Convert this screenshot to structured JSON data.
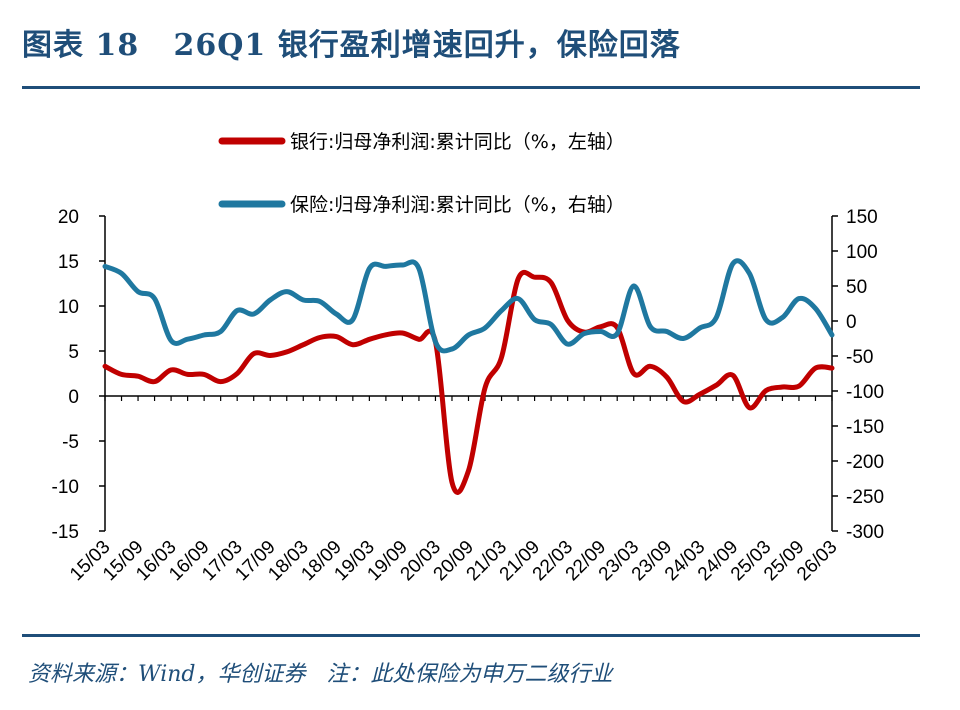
{
  "header": {
    "title": "图表 18   26Q1 银行盈利增速回升，保险回落"
  },
  "footer": {
    "source": "资料来源：Wind，华创证券   注：此处保险为申万二级行业"
  },
  "colors": {
    "bank": "#c00000",
    "insurance": "#1f78a0",
    "brand": "#1f4e79"
  },
  "chart_data": {
    "type": "line",
    "legend": [
      {
        "label": "银行:归母净利润:累计同比（%，左轴）",
        "series": "bank"
      },
      {
        "label": "保险:归母净利润:累计同比（%，右轴）",
        "series": "insurance"
      }
    ],
    "x_ticks": [
      "15/03",
      "15/09",
      "16/03",
      "16/09",
      "17/03",
      "17/09",
      "18/03",
      "18/09",
      "19/03",
      "19/09",
      "20/03",
      "20/09",
      "21/03",
      "21/09",
      "22/03",
      "22/09",
      "23/03",
      "23/09",
      "24/03",
      "24/09",
      "25/03",
      "25/09",
      "26/03"
    ],
    "x_quarters": [
      "15/03",
      "15/06",
      "15/09",
      "15/12",
      "16/03",
      "16/06",
      "16/09",
      "16/12",
      "17/03",
      "17/06",
      "17/09",
      "17/12",
      "18/03",
      "18/06",
      "18/09",
      "18/12",
      "19/03",
      "19/06",
      "19/09",
      "19/12",
      "20/03",
      "20/06",
      "20/09",
      "20/12",
      "21/03",
      "21/06",
      "21/09",
      "21/12",
      "22/03",
      "22/06",
      "22/09",
      "22/12",
      "23/03",
      "23/06",
      "23/09",
      "23/12",
      "24/03",
      "24/06",
      "24/09",
      "24/12",
      "25/03",
      "25/06",
      "25/09",
      "25/12",
      "26/03"
    ],
    "left_axis": {
      "min": -15,
      "max": 20,
      "step": 5,
      "ticks": [
        "20",
        "15",
        "10",
        "5",
        "0",
        "-5",
        "-10",
        "-15"
      ]
    },
    "right_axis": {
      "min": -300,
      "max": 150,
      "step": 50,
      "ticks": [
        "150",
        "100",
        "50",
        "0",
        "-50",
        "-100",
        "-150",
        "-200",
        "-250",
        "-300"
      ]
    },
    "series": [
      {
        "name": "银行:归母净利润:累计同比（%，左轴）",
        "key": "bank",
        "axis": "left",
        "values": [
          3.3,
          2.4,
          2.2,
          1.6,
          2.9,
          2.4,
          2.4,
          1.6,
          2.5,
          4.7,
          4.5,
          4.9,
          5.7,
          6.5,
          6.6,
          5.7,
          6.3,
          6.8,
          7.0,
          6.3,
          6.0,
          -9.6,
          -8.3,
          0.9,
          4.3,
          13.0,
          13.2,
          12.6,
          8.4,
          7.1,
          7.7,
          7.6,
          2.5,
          3.3,
          2.1,
          -0.6,
          0.2,
          1.2,
          2.3,
          -1.3,
          0.6,
          1.0,
          1.1,
          3.1,
          3.1
        ]
      },
      {
        "name": "保险:归母净利润:累计同比（%，右轴）",
        "key": "insurance",
        "axis": "right",
        "values": [
          78,
          68,
          42,
          32,
          -28,
          -26,
          -20,
          -15,
          15,
          10,
          30,
          42,
          30,
          28,
          10,
          2,
          75,
          78,
          80,
          75,
          -30,
          -40,
          -20,
          -10,
          15,
          32,
          2,
          -5,
          -33,
          -18,
          -15,
          -18,
          50,
          -8,
          -15,
          -25,
          -10,
          5,
          82,
          68,
          2,
          5,
          32,
          18,
          -20
        ]
      }
    ]
  }
}
